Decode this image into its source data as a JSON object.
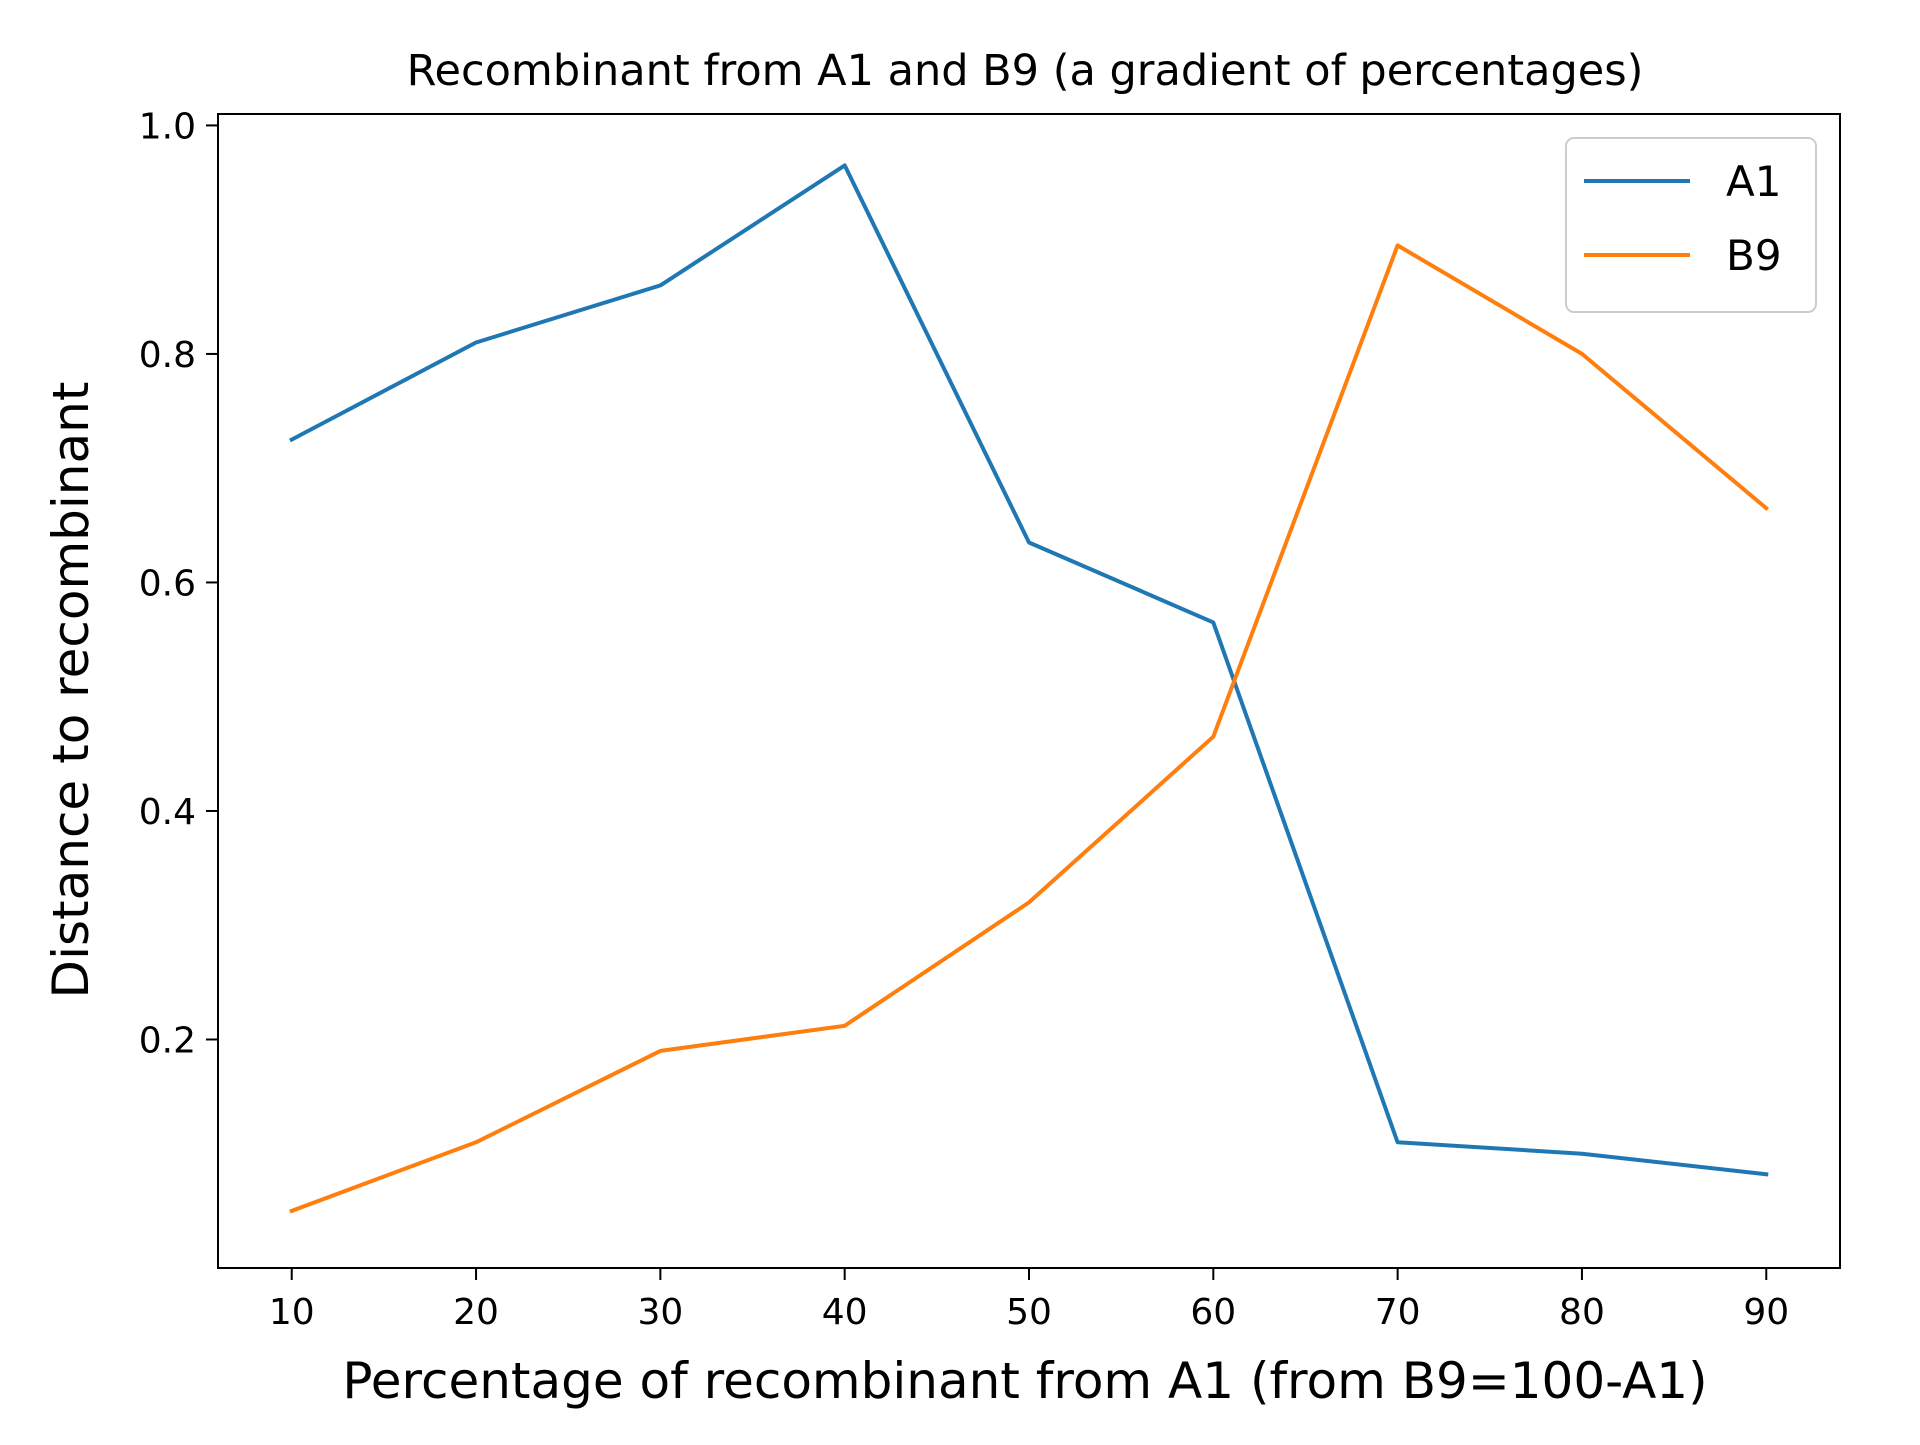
{
  "chart_data": {
    "type": "line",
    "title": "Recombinant from A1 and B9 (a gradient of percentages)",
    "xlabel": "Percentage of recombinant from A1 (from B9=100-A1)",
    "ylabel": "Distance to recombinant",
    "x": [
      10,
      20,
      30,
      40,
      50,
      60,
      70,
      80,
      90
    ],
    "x_ticks": [
      "10",
      "20",
      "30",
      "40",
      "50",
      "60",
      "70",
      "80",
      "90"
    ],
    "y_ticks": [
      "0.2",
      "0.4",
      "0.6",
      "0.8",
      "1.0"
    ],
    "xlim": [
      6,
      94
    ],
    "ylim": [
      0.0,
      1.01
    ],
    "grid": false,
    "legend_position": "top-right",
    "series": [
      {
        "name": "A1",
        "color": "#1f77b4",
        "values": [
          0.725,
          0.81,
          0.86,
          0.965,
          0.635,
          0.565,
          0.11,
          0.1,
          0.082
        ]
      },
      {
        "name": "B9",
        "color": "#ff7f0e",
        "values": [
          0.05,
          0.11,
          0.19,
          0.212,
          0.32,
          0.465,
          0.895,
          0.8,
          0.665
        ]
      }
    ]
  }
}
